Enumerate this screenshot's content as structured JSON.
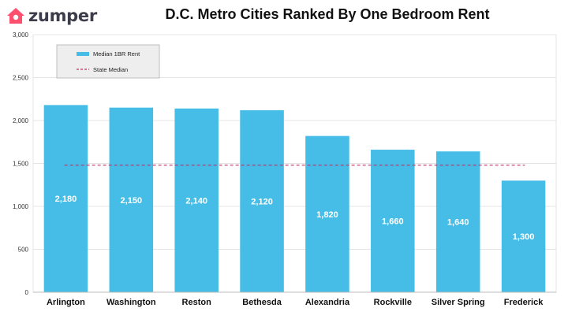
{
  "brand": {
    "name": "zumper",
    "accent": "#FF4F6E",
    "icon": "house-icon"
  },
  "colors": {
    "bar": "#45BDE6",
    "median_line": "#C0306A"
  },
  "chart_data": {
    "type": "bar",
    "title": "D.C. Metro Cities Ranked By One Bedroom Rent",
    "categories": [
      "Arlington",
      "Washington",
      "Reston",
      "Bethesda",
      "Alexandria",
      "Rockville",
      "Silver Spring",
      "Frederick"
    ],
    "series": [
      {
        "name": "Median 1BR Rent",
        "values": [
          2180,
          2150,
          2140,
          2120,
          1820,
          1660,
          1640,
          1300
        ]
      }
    ],
    "data_labels": [
      "2,180",
      "2,150",
      "2,140",
      "2,120",
      "1,820",
      "1,660",
      "1,640",
      "1,300"
    ],
    "reference_line": {
      "name": "State Median",
      "value": 1480,
      "style": "dashed"
    },
    "ylim": [
      0,
      3000
    ],
    "yticks": [
      0,
      500,
      1000,
      1500,
      2000,
      2500,
      3000
    ],
    "ytick_labels": [
      "0",
      "500",
      "1,000",
      "1,500",
      "2,000",
      "2,500",
      "3,000"
    ],
    "xlabel": "",
    "ylabel": "",
    "grid": true,
    "legend_position": "top-left"
  }
}
